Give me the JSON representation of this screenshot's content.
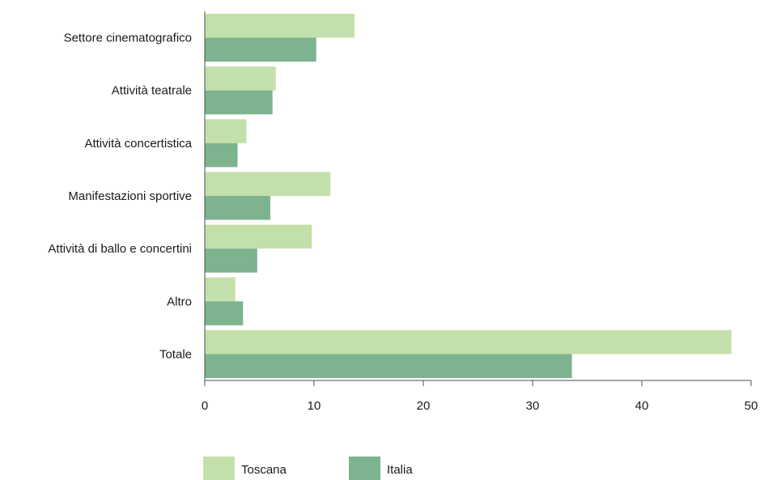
{
  "chart_data": {
    "type": "bar",
    "orientation": "horizontal",
    "categories": [
      "Settore cinematografico",
      "Attività teatrale",
      "Attività concertistica",
      "Manifestazioni sportive",
      "Attività di ballo e concertini",
      "Altro",
      "Totale"
    ],
    "series": [
      {
        "name": "Toscana",
        "color": "#c4e0aa",
        "values": [
          13.7,
          6.5,
          3.8,
          11.5,
          9.8,
          2.8,
          48.2
        ]
      },
      {
        "name": "Italia",
        "color": "#7db38f",
        "values": [
          10.2,
          6.2,
          3.0,
          6.0,
          4.8,
          3.5,
          33.6
        ]
      }
    ],
    "xlim": [
      0,
      50
    ],
    "xticks": [
      "0",
      "10",
      "20",
      "30",
      "40",
      "50"
    ],
    "grid": false,
    "legend_position": "bottom"
  }
}
